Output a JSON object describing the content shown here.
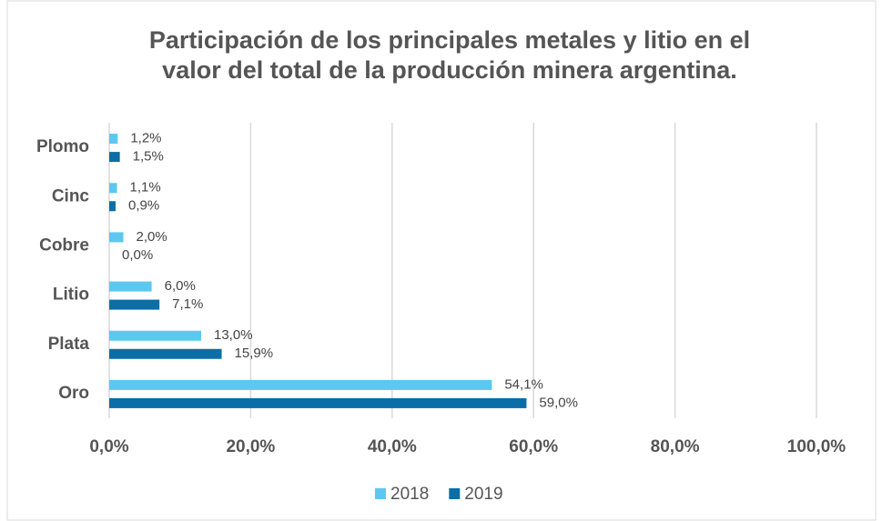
{
  "chart_data": {
    "type": "barh",
    "title": [
      "Participación de los principales metales y litio en el",
      "valor del total de la producción minera argentina."
    ],
    "categories": [
      "Plomo",
      "Cinc",
      "Cobre",
      "Litio",
      "Plata",
      "Oro"
    ],
    "series": [
      {
        "name": "2018",
        "color": "#5bc8f0",
        "values": [
          1.2,
          1.1,
          2.0,
          6.0,
          13.0,
          54.1
        ],
        "value_labels": [
          "1,2%",
          "1,1%",
          "2,0%",
          "6,0%",
          "13,0%",
          "54,1%"
        ]
      },
      {
        "name": "2019",
        "color": "#0b6ea6",
        "values": [
          1.5,
          0.9,
          0.0,
          7.1,
          15.9,
          59.0
        ],
        "value_labels": [
          "1,5%",
          "0,9%",
          "0,0%",
          "7,1%",
          "15,9%",
          "59,0%"
        ]
      }
    ],
    "xlim": [
      0,
      100
    ],
    "xticks": [
      {
        "value": 0,
        "label": "0,0%"
      },
      {
        "value": 20,
        "label": "20,0%"
      },
      {
        "value": 40,
        "label": "40,0%"
      },
      {
        "value": 60,
        "label": "60,0%"
      },
      {
        "value": 80,
        "label": "80,0%"
      },
      {
        "value": 100,
        "label": "100,0%"
      }
    ],
    "grid": true,
    "legend": "bottom"
  }
}
